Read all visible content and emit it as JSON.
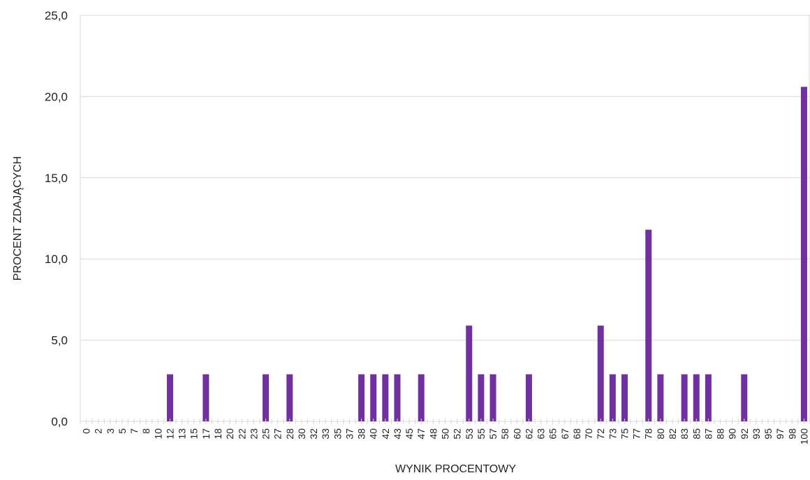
{
  "chart_data": {
    "type": "bar",
    "title": "",
    "xlabel": "WYNIK PROCENTOWY",
    "ylabel": "PROCENT ZDAJĄCYCH",
    "ylim": [
      0,
      25
    ],
    "yticks": [
      "0,0",
      "5,0",
      "10,0",
      "15,0",
      "20,0",
      "25,0"
    ],
    "ytick_values": [
      0,
      5,
      10,
      15,
      20,
      25
    ],
    "grid": true,
    "legend": "none",
    "bar_color": "#7030a0",
    "categories": [
      "0",
      "2",
      "3",
      "5",
      "7",
      "8",
      "10",
      "12",
      "13",
      "15",
      "17",
      "18",
      "20",
      "22",
      "23",
      "25",
      "27",
      "28",
      "30",
      "32",
      "33",
      "35",
      "37",
      "38",
      "40",
      "42",
      "43",
      "45",
      "47",
      "48",
      "50",
      "52",
      "53",
      "55",
      "57",
      "58",
      "60",
      "62",
      "63",
      "65",
      "67",
      "68",
      "70",
      "72",
      "73",
      "75",
      "77",
      "78",
      "80",
      "82",
      "83",
      "85",
      "87",
      "88",
      "90",
      "92",
      "93",
      "95",
      "97",
      "98",
      "100"
    ],
    "values": [
      0,
      0,
      0,
      0,
      0,
      0,
      0,
      2.9,
      0,
      0,
      2.9,
      0,
      0,
      0,
      0,
      2.9,
      0,
      2.9,
      0,
      0,
      0,
      0,
      0,
      2.9,
      2.9,
      2.9,
      2.9,
      0,
      2.9,
      0,
      0,
      0,
      5.9,
      2.9,
      2.9,
      0,
      0,
      2.9,
      0,
      0,
      0,
      0,
      0,
      5.9,
      2.9,
      2.9,
      0,
      11.8,
      2.9,
      0,
      2.9,
      2.9,
      2.9,
      0,
      0,
      2.9,
      0,
      0,
      0,
      0,
      20.6
    ]
  }
}
